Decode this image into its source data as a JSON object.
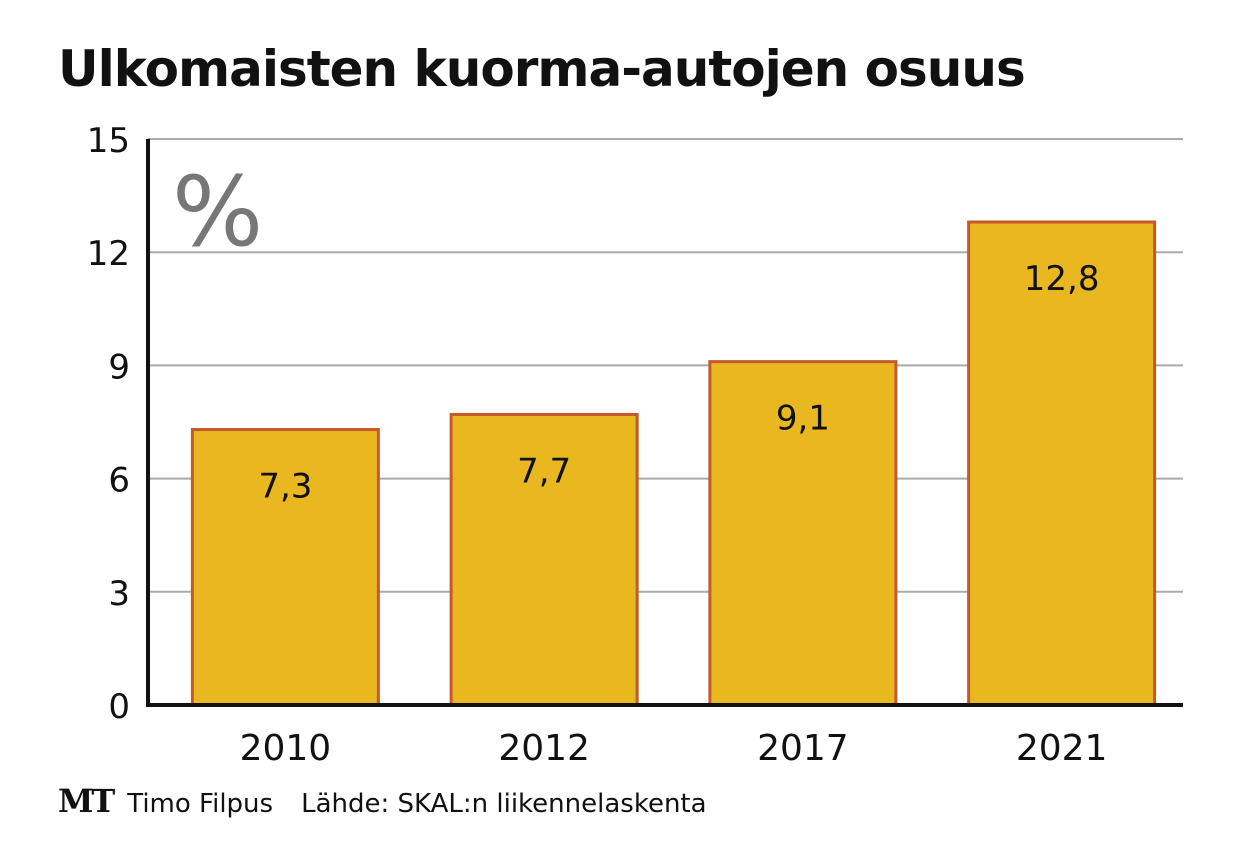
{
  "chart_data": {
    "type": "bar",
    "title": "Ulkomaisten kuorma-autojen osuus",
    "unit_label": "%",
    "categories": [
      "2010",
      "2012",
      "2017",
      "2021"
    ],
    "values": [
      7.3,
      7.7,
      9.1,
      12.8
    ],
    "value_labels": [
      "7,3",
      "7,7",
      "9,1",
      "12,8"
    ],
    "ylim": [
      0,
      15
    ],
    "yticks": [
      0,
      3,
      6,
      9,
      12,
      15
    ],
    "grid": true,
    "xlabel": "",
    "ylabel": "%",
    "colors": {
      "bar_fill": "#E9B720",
      "bar_stroke": "#C4592A",
      "grid": "#AAAAAA",
      "axis": "#111111",
      "unit": "#777777"
    }
  },
  "footer": {
    "logo": "MT",
    "author": "Timo Filpus",
    "source": "Lähde: SKAL:n liikennelaskenta"
  }
}
